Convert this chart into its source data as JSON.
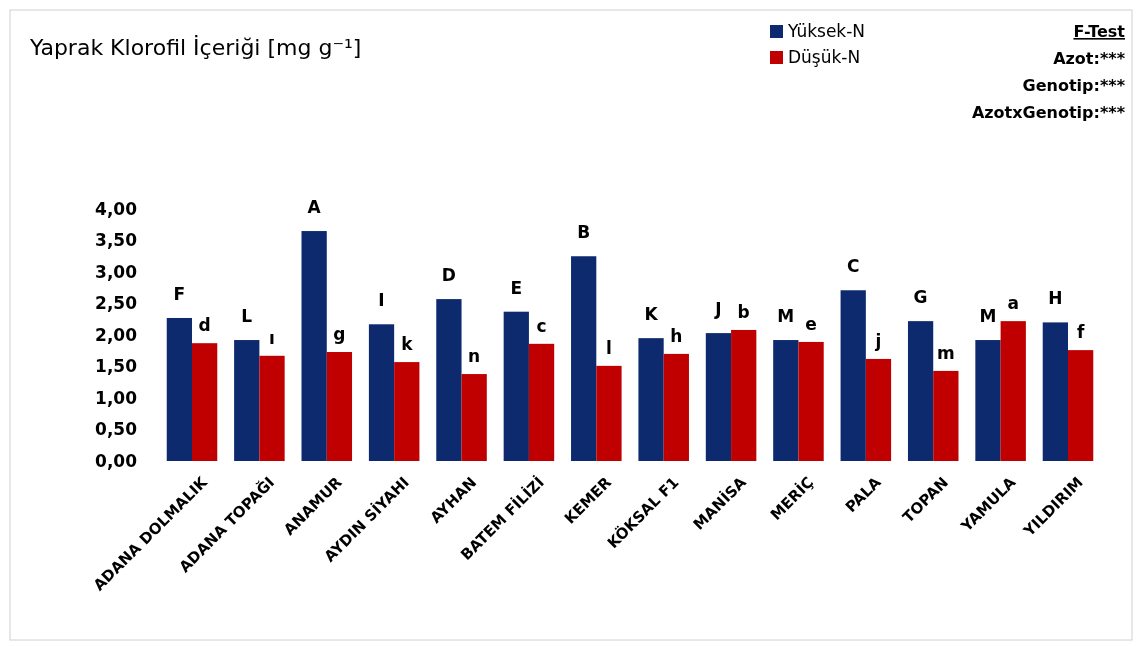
{
  "chart_data": {
    "type": "bar",
    "title": "Yaprak Klorofil İçeriği [mg g⁻¹]",
    "categories": [
      "ADANA DOLMALIK",
      "ADANA TOPAĞI",
      "ANAMUR",
      "AYDIN SİYAHI",
      "AYHAN",
      "BATEM FİLİZİ",
      "KEMER",
      "KÖKSAL F1",
      "MANİSA",
      "MERİÇ",
      "PALA",
      "TOPAN",
      "YAMULA",
      "YILDIRIM"
    ],
    "series": [
      {
        "name": "Yüksek-N",
        "color": "#0d2a6e",
        "values": [
          2.27,
          1.92,
          3.65,
          2.17,
          2.57,
          2.37,
          3.25,
          1.95,
          2.03,
          1.92,
          2.71,
          2.22,
          1.92,
          2.2
        ],
        "value_labels": [
          "F",
          "L",
          "A",
          "I",
          "D",
          "E",
          "B",
          "K",
          "J",
          "M",
          "C",
          "G",
          "M",
          "H"
        ]
      },
      {
        "name": "Düşük-N",
        "color": "#c00000",
        "values": [
          1.87,
          1.67,
          1.73,
          1.57,
          1.38,
          1.86,
          1.51,
          1.7,
          2.08,
          1.89,
          1.62,
          1.43,
          2.22,
          1.76
        ],
        "value_labels": [
          "d",
          "ı",
          "g",
          "k",
          "n",
          "c",
          "l",
          "h",
          "b",
          "e",
          "j",
          "m",
          "a",
          "f"
        ]
      }
    ],
    "ylim": [
      0,
      4
    ],
    "yticks": [
      {
        "value": 0,
        "label": "0,00"
      },
      {
        "value": 0.5,
        "label": "0,50"
      },
      {
        "value": 1,
        "label": "1,00"
      },
      {
        "value": 1.5,
        "label": "1,50"
      },
      {
        "value": 2,
        "label": "2,00"
      },
      {
        "value": 2.5,
        "label": "2,50"
      },
      {
        "value": 3,
        "label": "3,00"
      },
      {
        "value": 3.5,
        "label": "3,50"
      },
      {
        "value": 4,
        "label": "4,00"
      }
    ],
    "legend": "top right",
    "annotations": [
      "F-Test",
      "Azot:***",
      "Genotip:***",
      "AzotxGenotip:***"
    ]
  }
}
